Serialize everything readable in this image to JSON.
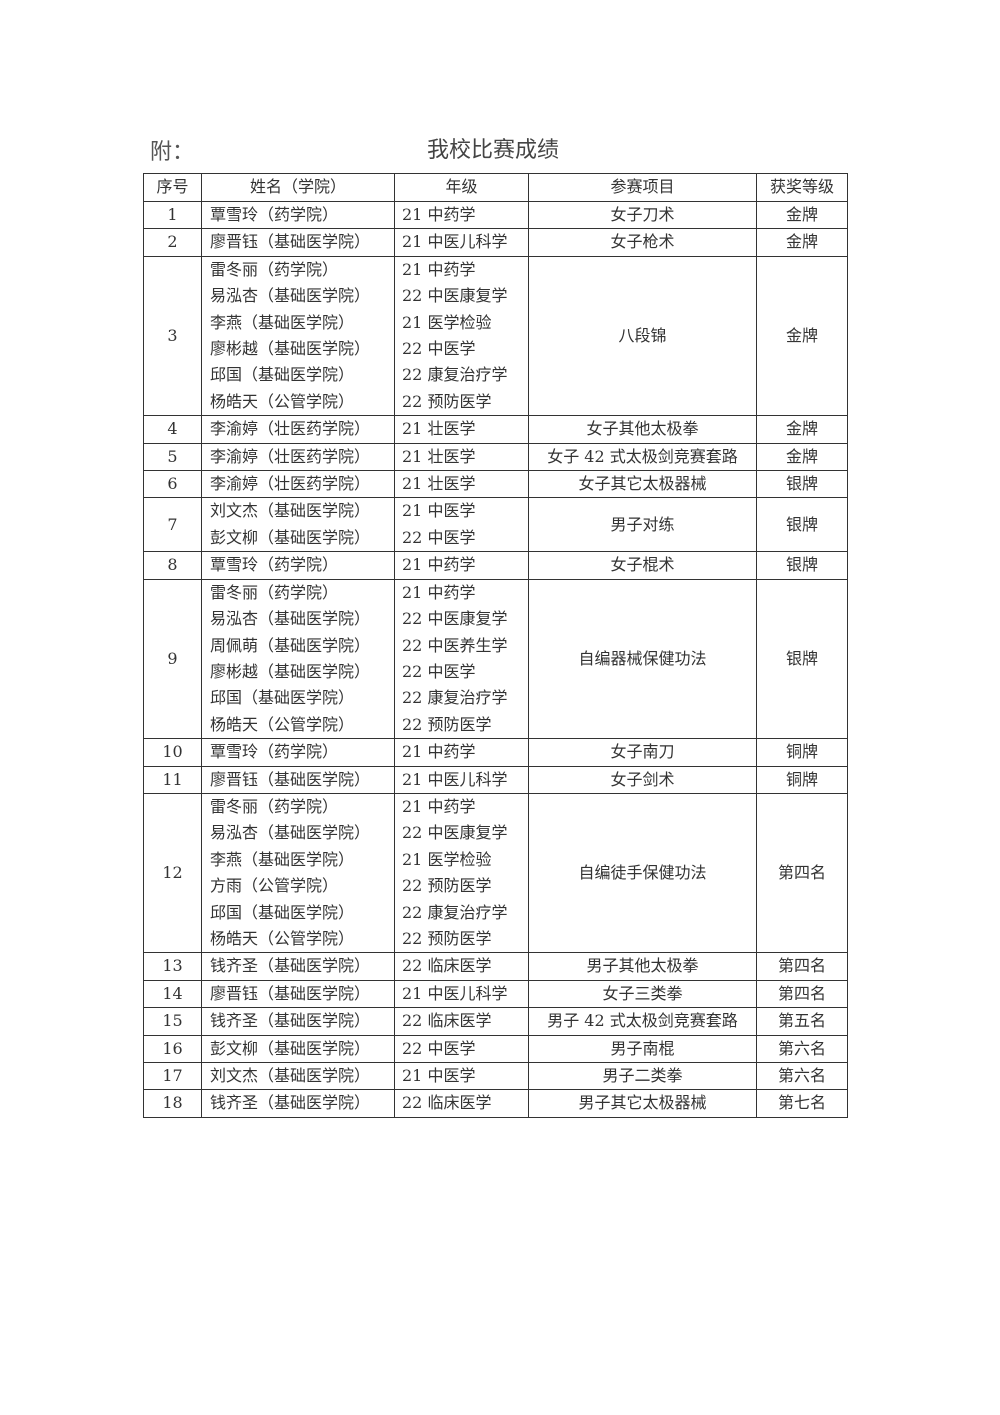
{
  "document": {
    "attachment_label": "附：",
    "title": "我校比赛成绩"
  },
  "table": {
    "headers": [
      "序号",
      "姓名（学院）",
      "年级",
      "参赛项目",
      "获奖等级"
    ],
    "rows": [
      {
        "no": "1",
        "names": [
          "覃雪玲（药学院）"
        ],
        "grades": [
          "21 中药学"
        ],
        "event": "女子刀术",
        "award": "金牌"
      },
      {
        "no": "2",
        "names": [
          "廖晋钰（基础医学院）"
        ],
        "grades": [
          "21 中医儿科学"
        ],
        "event": "女子枪术",
        "award": "金牌"
      },
      {
        "no": "3",
        "names": [
          "雷冬丽（药学院）",
          "易泓杏（基础医学院）",
          "李燕（基础医学院）",
          "廖彬越（基础医学院）",
          "邱国（基础医学院）",
          "杨皓天（公管学院）"
        ],
        "grades": [
          "21 中药学",
          "22 中医康复学",
          "21 医学检验",
          "22 中医学",
          "22 康复治疗学",
          "22 预防医学"
        ],
        "event": "八段锦",
        "award": "金牌"
      },
      {
        "no": "4",
        "names": [
          "李渝婷（壮医药学院）"
        ],
        "grades": [
          "21 壮医学"
        ],
        "event": "女子其他太极拳",
        "award": "金牌"
      },
      {
        "no": "5",
        "names": [
          "李渝婷（壮医药学院）"
        ],
        "grades": [
          "21 壮医学"
        ],
        "event": "女子 42 式太极剑竞赛套路",
        "award": "金牌"
      },
      {
        "no": "6",
        "names": [
          "李渝婷（壮医药学院）"
        ],
        "grades": [
          "21 壮医学"
        ],
        "event": "女子其它太极器械",
        "award": "银牌"
      },
      {
        "no": "7",
        "names": [
          "刘文杰（基础医学院）",
          "彭文柳（基础医学院）"
        ],
        "grades": [
          "21 中医学",
          "22 中医学"
        ],
        "event": "男子对练",
        "award": "银牌"
      },
      {
        "no": "8",
        "names": [
          "覃雪玲（药学院）"
        ],
        "grades": [
          "21 中药学"
        ],
        "event": "女子棍术",
        "award": "银牌"
      },
      {
        "no": "9",
        "names": [
          "雷冬丽（药学院）",
          "易泓杏（基础医学院）",
          "周佩萌（基础医学院）",
          "廖彬越（基础医学院）",
          "邱国（基础医学院）",
          "杨皓天（公管学院）"
        ],
        "grades": [
          "21 中药学",
          "22 中医康复学",
          "22 中医养生学",
          "22 中医学",
          "22 康复治疗学",
          "22 预防医学"
        ],
        "event": "自编器械保健功法",
        "award": "银牌"
      },
      {
        "no": "10",
        "names": [
          "覃雪玲（药学院）"
        ],
        "grades": [
          "21 中药学"
        ],
        "event": "女子南刀",
        "award": "铜牌"
      },
      {
        "no": "11",
        "names": [
          "廖晋钰（基础医学院）"
        ],
        "grades": [
          "21 中医儿科学"
        ],
        "event": "女子剑术",
        "award": "铜牌"
      },
      {
        "no": "12",
        "names": [
          "雷冬丽（药学院）",
          "易泓杏（基础医学院）",
          "李燕（基础医学院）",
          "方雨（公管学院）",
          "邱国（基础医学院）",
          "杨皓天（公管学院）"
        ],
        "grades": [
          "21 中药学",
          "22 中医康复学",
          "21 医学检验",
          "22 预防医学",
          "22 康复治疗学",
          "22 预防医学"
        ],
        "event": "自编徒手保健功法",
        "award": "第四名"
      },
      {
        "no": "13",
        "names": [
          "钱齐圣（基础医学院）"
        ],
        "grades": [
          "22 临床医学"
        ],
        "event": "男子其他太极拳",
        "award": "第四名"
      },
      {
        "no": "14",
        "names": [
          "廖晋钰（基础医学院）"
        ],
        "grades": [
          "21 中医儿科学"
        ],
        "event": "女子三类拳",
        "award": "第四名"
      },
      {
        "no": "15",
        "names": [
          "钱齐圣（基础医学院）"
        ],
        "grades": [
          "22 临床医学"
        ],
        "event": "男子 42 式太极剑竞赛套路",
        "award": "第五名"
      },
      {
        "no": "16",
        "names": [
          "彭文柳（基础医学院）"
        ],
        "grades": [
          "22 中医学"
        ],
        "event": "男子南棍",
        "award": "第六名"
      },
      {
        "no": "17",
        "names": [
          "刘文杰（基础医学院）"
        ],
        "grades": [
          "21 中医学"
        ],
        "event": "男子二类拳",
        "award": "第六名"
      },
      {
        "no": "18",
        "names": [
          "钱齐圣（基础医学院）"
        ],
        "grades": [
          "22 临床医学"
        ],
        "event": "男子其它太极器械",
        "award": "第七名"
      }
    ]
  }
}
